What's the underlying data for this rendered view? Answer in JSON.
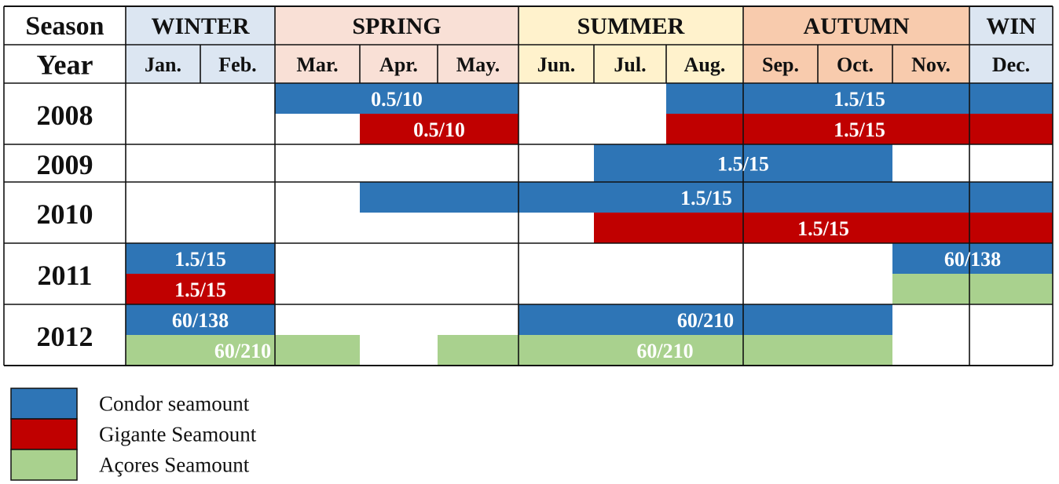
{
  "chart_data": {
    "type": "table",
    "header": {
      "season_label": "Season",
      "year_label": "Year",
      "seasons": [
        {
          "name": "WINTER",
          "months": [
            1,
            2
          ],
          "color": "#DCE6F2"
        },
        {
          "name": "SPRING",
          "months": [
            3,
            5
          ],
          "color": "#F9E0D6"
        },
        {
          "name": "SUMMER",
          "months": [
            6,
            8
          ],
          "color": "#FFF2CC"
        },
        {
          "name": "AUTUMN",
          "months": [
            9,
            11
          ],
          "color": "#F8CBAD"
        },
        {
          "name": "WIN",
          "months": [
            12,
            12
          ],
          "color": "#DCE6F2"
        }
      ],
      "months": [
        "Jan.",
        "Feb.",
        "Mar.",
        "Apr.",
        "May.",
        "Jun.",
        "Jul.",
        "Aug.",
        "Sep.",
        "Oct.",
        "Nov.",
        "Dec."
      ]
    },
    "years": [
      {
        "year": "2008",
        "lanes": [
          [
            {
              "seamount": "Condor seamount",
              "start": 3,
              "end": 5,
              "label": "0.5/10"
            },
            {
              "seamount": "Condor seamount",
              "start": 8,
              "end": 12,
              "label": "1.5/15"
            }
          ],
          [
            {
              "seamount": "Gigante Seamount",
              "start": 4,
              "end": 5,
              "label": "0.5/10"
            },
            {
              "seamount": "Gigante Seamount",
              "start": 8,
              "end": 12,
              "label": "1.5/15"
            }
          ]
        ]
      },
      {
        "year": "2009",
        "lanes": [
          [
            {
              "seamount": "Condor seamount",
              "start": 7,
              "end": 10,
              "label": "1.5/15"
            }
          ]
        ]
      },
      {
        "year": "2010",
        "lanes": [
          [
            {
              "seamount": "Condor seamount",
              "start": 4,
              "end": 12,
              "label": "1.5/15"
            }
          ],
          [
            {
              "seamount": "Gigante Seamount",
              "start": 7,
              "end": 12,
              "label": "1.5/15"
            }
          ]
        ]
      },
      {
        "year": "2011",
        "lanes": [
          [
            {
              "seamount": "Condor seamount",
              "start": 1,
              "end": 2,
              "label": "1.5/15"
            },
            {
              "seamount": "Condor seamount",
              "start": 11,
              "end": 12,
              "label": "60/138"
            }
          ],
          [
            {
              "seamount": "Gigante Seamount",
              "start": 1,
              "end": 2,
              "label": "1.5/15"
            },
            {
              "seamount": "Açores Seamount",
              "start": 11,
              "end": 12,
              "label": ""
            }
          ]
        ]
      },
      {
        "year": "2012",
        "lanes": [
          [
            {
              "seamount": "Condor seamount",
              "start": 1,
              "end": 2,
              "label": "60/138"
            },
            {
              "seamount": "Condor seamount",
              "start": 6,
              "end": 10,
              "label": "60/210"
            }
          ],
          [
            {
              "seamount": "Açores Seamount",
              "start": 1,
              "end": 3,
              "label": "60/210"
            },
            {
              "seamount": "Açores Seamount",
              "start": 5,
              "end": 10,
              "label": "60/210"
            }
          ]
        ]
      }
    ],
    "legend": [
      {
        "name": "Condor seamount",
        "color": "#2E75B6"
      },
      {
        "name": "Gigante Seamount",
        "color": "#C00000"
      },
      {
        "name": "Açores Seamount",
        "color": "#A9D18E"
      }
    ],
    "legend_position": "bottom-left"
  }
}
